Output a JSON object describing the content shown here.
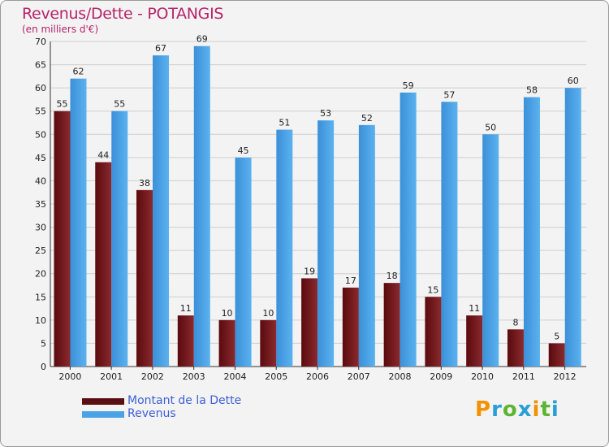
{
  "chart_data": {
    "type": "bar",
    "title": "Revenus/Dette - POTANGIS",
    "subtitle": "(en milliers d'€)",
    "categories": [
      "2000",
      "2001",
      "2002",
      "2003",
      "2004",
      "2005",
      "2006",
      "2007",
      "2008",
      "2009",
      "2010",
      "2011",
      "2012"
    ],
    "series": [
      {
        "name": "Montant de la Dette",
        "values": [
          55,
          44,
          38,
          11,
          10,
          10,
          19,
          17,
          18,
          15,
          11,
          8,
          5
        ],
        "color": "#7a1a1f"
      },
      {
        "name": "Revenus",
        "values": [
          62,
          55,
          67,
          69,
          45,
          51,
          53,
          52,
          59,
          57,
          50,
          58,
          60
        ],
        "color": "#4aa3e6"
      }
    ],
    "ylim": [
      0,
      70
    ],
    "yticks": [
      0,
      5,
      10,
      15,
      20,
      25,
      30,
      35,
      40,
      45,
      50,
      55,
      60,
      65,
      70
    ],
    "grid": true,
    "legend_position": "bottom-left"
  },
  "logo": {
    "letters": [
      "P",
      "r",
      "o",
      "x",
      "i",
      "t",
      "i"
    ],
    "colors": [
      "#f39200",
      "#2a9fd6",
      "#5cb531",
      "#2a9fd6",
      "#f39200",
      "#5cb531",
      "#2a9fd6"
    ]
  }
}
